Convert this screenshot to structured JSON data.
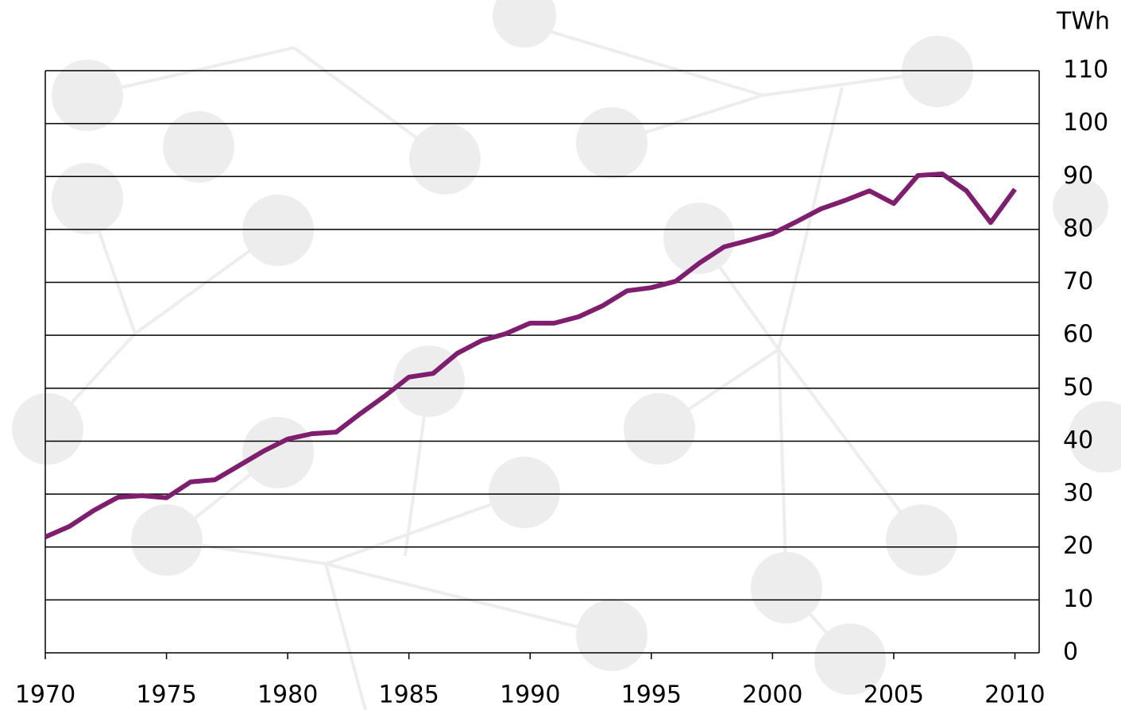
{
  "chart_data": {
    "type": "line",
    "y_axis_label": "TWh",
    "x": [
      1970,
      1971,
      1972,
      1973,
      1974,
      1975,
      1976,
      1977,
      1978,
      1979,
      1980,
      1981,
      1982,
      1983,
      1984,
      1985,
      1986,
      1987,
      1988,
      1989,
      1990,
      1991,
      1992,
      1993,
      1994,
      1995,
      1996,
      1997,
      1998,
      1999,
      2000,
      2001,
      2002,
      2003,
      2004,
      2005,
      2006,
      2007,
      2008,
      2009,
      2010
    ],
    "values": [
      21.9,
      23.9,
      26.9,
      29.4,
      29.7,
      29.3,
      32.3,
      32.7,
      35.4,
      38.1,
      40.4,
      41.4,
      41.7,
      45.2,
      48.5,
      52.1,
      52.8,
      56.6,
      59.0,
      60.3,
      62.3,
      62.3,
      63.5,
      65.6,
      68.4,
      69.0,
      70.2,
      73.7,
      76.7,
      77.9,
      79.2,
      81.5,
      83.9,
      85.5,
      87.3,
      84.9,
      90.2,
      90.5,
      87.3,
      81.3,
      87.6
    ],
    "color": "#7f1d6e",
    "xlim": [
      1970,
      2011
    ],
    "xticks": [
      1970,
      1975,
      1980,
      1985,
      1990,
      1995,
      2000,
      2005,
      2010
    ],
    "ylim": [
      0,
      110
    ],
    "yticks": [
      0,
      10,
      20,
      30,
      40,
      50,
      60,
      70,
      80,
      90,
      100,
      110
    ],
    "grid": true
  }
}
